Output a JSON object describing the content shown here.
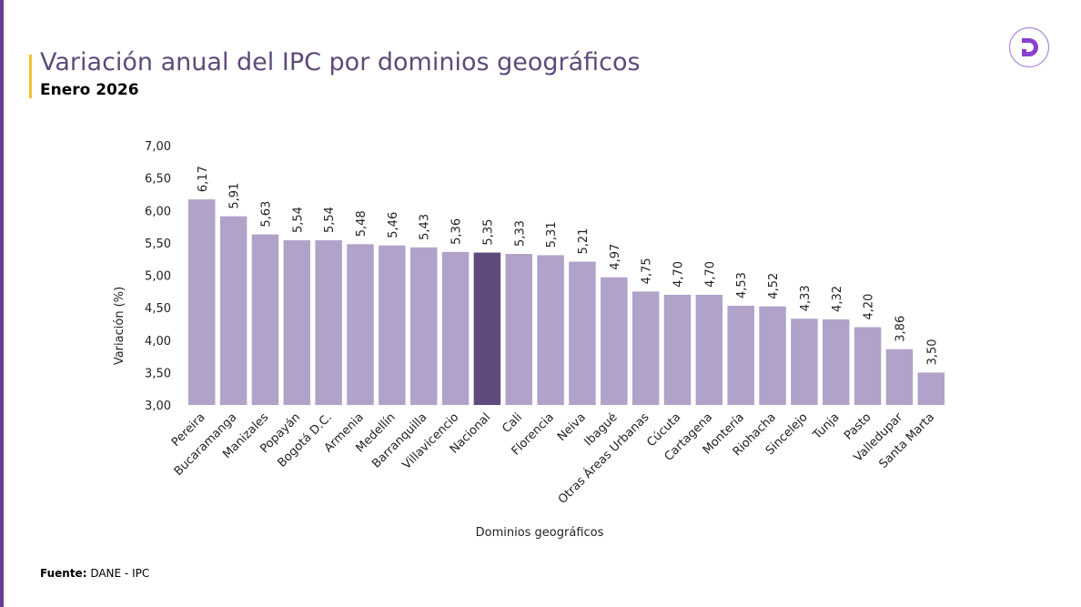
{
  "header": {
    "title": "Variación anual del IPC por dominios geográficos",
    "subtitle": "Enero 2026"
  },
  "logo": {
    "letter": "D",
    "color": "#8b3fd1"
  },
  "footer": {
    "source_label": "Fuente:",
    "source_value": " DANE - IPC"
  },
  "colors": {
    "bar": "#b1a2c9",
    "highlight": "#5f4a7e",
    "accent": "#f2c230",
    "sidebar": "#6a3d8f"
  },
  "chart_data": {
    "type": "bar",
    "xlabel": "Dominios geográficos",
    "ylabel": "Variación (%)",
    "ylim": [
      3,
      7
    ],
    "yticks": [
      "3,00",
      "3,50",
      "4,00",
      "4,50",
      "5,00",
      "5,50",
      "6,00",
      "6,50",
      "7,00"
    ],
    "grid": false,
    "categories": [
      "Pereira",
      "Bucaramanga",
      "Manizales",
      "Popayán",
      "Bogotá D.C.",
      "Armenia",
      "Medellín",
      "Barranquilla",
      "Villavicencio",
      "Nacional",
      "Cali",
      "Florencia",
      "Neiva",
      "Ibagué",
      "Otras Áreas Urbanas",
      "Cúcuta",
      "Cartagena",
      "Montería",
      "Riohacha",
      "Sincelejo",
      "Tunja",
      "Pasto",
      "Valledupar",
      "Santa Marta"
    ],
    "values": [
      6.17,
      5.91,
      5.63,
      5.54,
      5.54,
      5.48,
      5.46,
      5.43,
      5.36,
      5.35,
      5.33,
      5.31,
      5.21,
      4.97,
      4.75,
      4.7,
      4.7,
      4.53,
      4.52,
      4.33,
      4.32,
      4.2,
      3.86,
      3.5
    ],
    "data_labels": [
      "6,17",
      "5,91",
      "5,63",
      "5,54",
      "5,54",
      "5,48",
      "5,46",
      "5,43",
      "5,36",
      "5,35",
      "5,33",
      "5,31",
      "5,21",
      "4,97",
      "4,75",
      "4,70",
      "4,70",
      "4,53",
      "4,52",
      "4,33",
      "4,32",
      "4,20",
      "3,86",
      "3,50"
    ],
    "highlighted_category": "Nacional"
  }
}
